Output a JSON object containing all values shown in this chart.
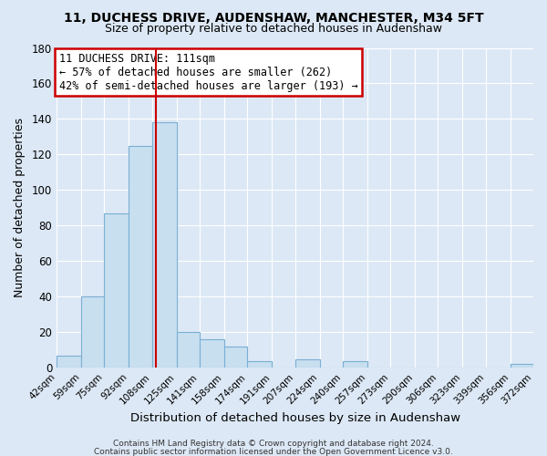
{
  "title1": "11, DUCHESS DRIVE, AUDENSHAW, MANCHESTER, M34 5FT",
  "title2": "Size of property relative to detached houses in Audenshaw",
  "xlabel": "Distribution of detached houses by size in Audenshaw",
  "ylabel": "Number of detached properties",
  "footer1": "Contains HM Land Registry data © Crown copyright and database right 2024.",
  "footer2": "Contains public sector information licensed under the Open Government Licence v3.0.",
  "bar_edges": [
    42,
    59,
    75,
    92,
    108,
    125,
    141,
    158,
    174,
    191,
    207,
    224,
    240,
    257,
    273,
    290,
    306,
    323,
    339,
    356,
    372
  ],
  "bar_heights": [
    7,
    40,
    87,
    125,
    138,
    20,
    16,
    12,
    4,
    0,
    5,
    0,
    4,
    0,
    0,
    0,
    0,
    0,
    0,
    2
  ],
  "bar_color": "#c8dff0",
  "bar_edge_color": "#7aafd4",
  "vline_x": 111,
  "vline_color": "#cc0000",
  "ylim": [
    0,
    180
  ],
  "yticks": [
    0,
    20,
    40,
    60,
    80,
    100,
    120,
    140,
    160,
    180
  ],
  "annotation_title": "11 DUCHESS DRIVE: 111sqm",
  "annotation_line1": "← 57% of detached houses are smaller (262)",
  "annotation_line2": "42% of semi-detached houses are larger (193) →",
  "annotation_box_facecolor": "#ffffff",
  "annotation_box_edgecolor": "#cc0000",
  "tick_labels": [
    "42sqm",
    "59sqm",
    "75sqm",
    "92sqm",
    "108sqm",
    "125sqm",
    "141sqm",
    "158sqm",
    "174sqm",
    "191sqm",
    "207sqm",
    "224sqm",
    "240sqm",
    "257sqm",
    "273sqm",
    "290sqm",
    "306sqm",
    "323sqm",
    "339sqm",
    "356sqm",
    "372sqm"
  ],
  "background_color": "#dce8f5",
  "grid_color": "#ffffff",
  "title1_fontsize": 10,
  "title2_fontsize": 9
}
